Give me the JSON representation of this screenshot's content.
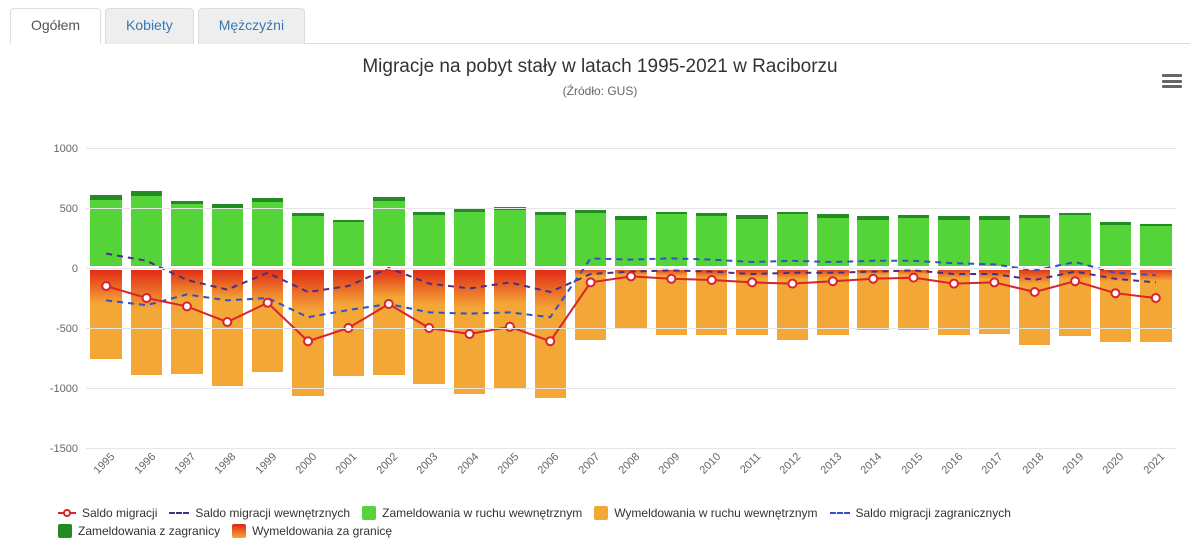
{
  "tabs": [
    {
      "id": "ogolem",
      "label": "Ogółem",
      "active": true
    },
    {
      "id": "kobiety",
      "label": "Kobiety",
      "active": false
    },
    {
      "id": "mezczyzni",
      "label": "Mężczyźni",
      "active": false
    }
  ],
  "chart": {
    "title": "Migracje na pobyt stały w latach 1995-2021 w Raciborzu",
    "subtitle": "(Źródło: GUS)",
    "ylim": [
      -1500,
      1000
    ],
    "ytick_step": 500,
    "yticks": [
      -1500,
      -1000,
      -500,
      0,
      500,
      1000
    ],
    "categories": [
      "1995",
      "1996",
      "1997",
      "1998",
      "1999",
      "2000",
      "2001",
      "2002",
      "2003",
      "2004",
      "2005",
      "2006",
      "2007",
      "2008",
      "2009",
      "2010",
      "2011",
      "2012",
      "2013",
      "2014",
      "2015",
      "2016",
      "2017",
      "2018",
      "2019",
      "2020",
      "2021"
    ],
    "grid_color": "#e6e6e6",
    "background_color": "#ffffff",
    "bar_gap_pct": 0.22,
    "series": {
      "zam_zagr": {
        "name": "Zameldowania z zagranicy",
        "type": "column",
        "color": "#228B22",
        "data": [
          610,
          640,
          560,
          530,
          580,
          460,
          400,
          590,
          470,
          500,
          510,
          470,
          480,
          430,
          470,
          460,
          440,
          470,
          450,
          430,
          440,
          430,
          430,
          440,
          460,
          380,
          370
        ]
      },
      "zam_wewn": {
        "name": "Zameldowania w ruchu wewnętrznym",
        "type": "column",
        "color": "#55d43a",
        "data": [
          570,
          600,
          530,
          500,
          550,
          430,
          380,
          560,
          440,
          470,
          480,
          440,
          460,
          400,
          450,
          430,
          410,
          450,
          420,
          400,
          420,
          400,
          400,
          420,
          440,
          360,
          350
        ]
      },
      "wym_wewn": {
        "name": "Wymeldowania w ruchu wewnętrznym",
        "type": "column",
        "color": "#f3a737",
        "data": [
          -760,
          -890,
          -880,
          -980,
          -870,
          -1070,
          -900,
          -890,
          -970,
          -1050,
          -1000,
          -1080,
          -600,
          -500,
          -560,
          -560,
          -560,
          -600,
          -560,
          -520,
          -520,
          -560,
          -550,
          -640,
          -570,
          -620,
          -620
        ]
      },
      "wym_zagr": {
        "name": "Wymeldowania za granicę",
        "type": "column",
        "color_top": "#e02514",
        "color_bottom": "#f3a737",
        "data": [
          -300,
          -340,
          -260,
          -270,
          -290,
          -360,
          -310,
          -250,
          -310,
          -330,
          -300,
          -340,
          -70,
          -60,
          -70,
          -80,
          -80,
          -90,
          -80,
          -60,
          -60,
          -80,
          -90,
          -130,
          -90,
          -120,
          -110
        ]
      },
      "saldo": {
        "name": "Saldo migracji",
        "type": "line",
        "color": "#d9232d",
        "marker": "circle",
        "marker_border": "#d9232d",
        "marker_fill": "#ffffff",
        "line_width": 2,
        "data": [
          -150,
          -250,
          -320,
          -450,
          -290,
          -610,
          -500,
          -300,
          -500,
          -550,
          -490,
          -610,
          -120,
          -70,
          -90,
          -100,
          -120,
          -130,
          -110,
          -90,
          -80,
          -130,
          -120,
          -200,
          -110,
          -210,
          -250
        ]
      },
      "saldo_wewn": {
        "name": "Saldo migracji wewnętrznych",
        "type": "line",
        "dash": "6,5",
        "color": "#4b2e83",
        "line_width": 2,
        "data": [
          120,
          60,
          -100,
          -180,
          -40,
          -200,
          -150,
          0,
          -130,
          -170,
          -120,
          -200,
          -50,
          -30,
          -20,
          -30,
          -50,
          -40,
          -40,
          -30,
          -20,
          -50,
          -50,
          -100,
          -30,
          -90,
          -120
        ]
      },
      "saldo_zagr": {
        "name": "Saldo migracji zagranicznych",
        "type": "line",
        "dash": "6,5",
        "color": "#2e52c6",
        "line_width": 2,
        "data": [
          -270,
          -310,
          -220,
          -270,
          -250,
          -410,
          -350,
          -300,
          -370,
          -380,
          -370,
          -410,
          80,
          70,
          80,
          70,
          50,
          60,
          50,
          60,
          60,
          40,
          30,
          -20,
          50,
          -40,
          -60
        ]
      }
    },
    "legend_order": [
      "saldo",
      "saldo_wewn",
      "zam_wewn",
      "wym_wewn",
      "saldo_zagr",
      "zam_zagr",
      "wym_zagr"
    ]
  }
}
